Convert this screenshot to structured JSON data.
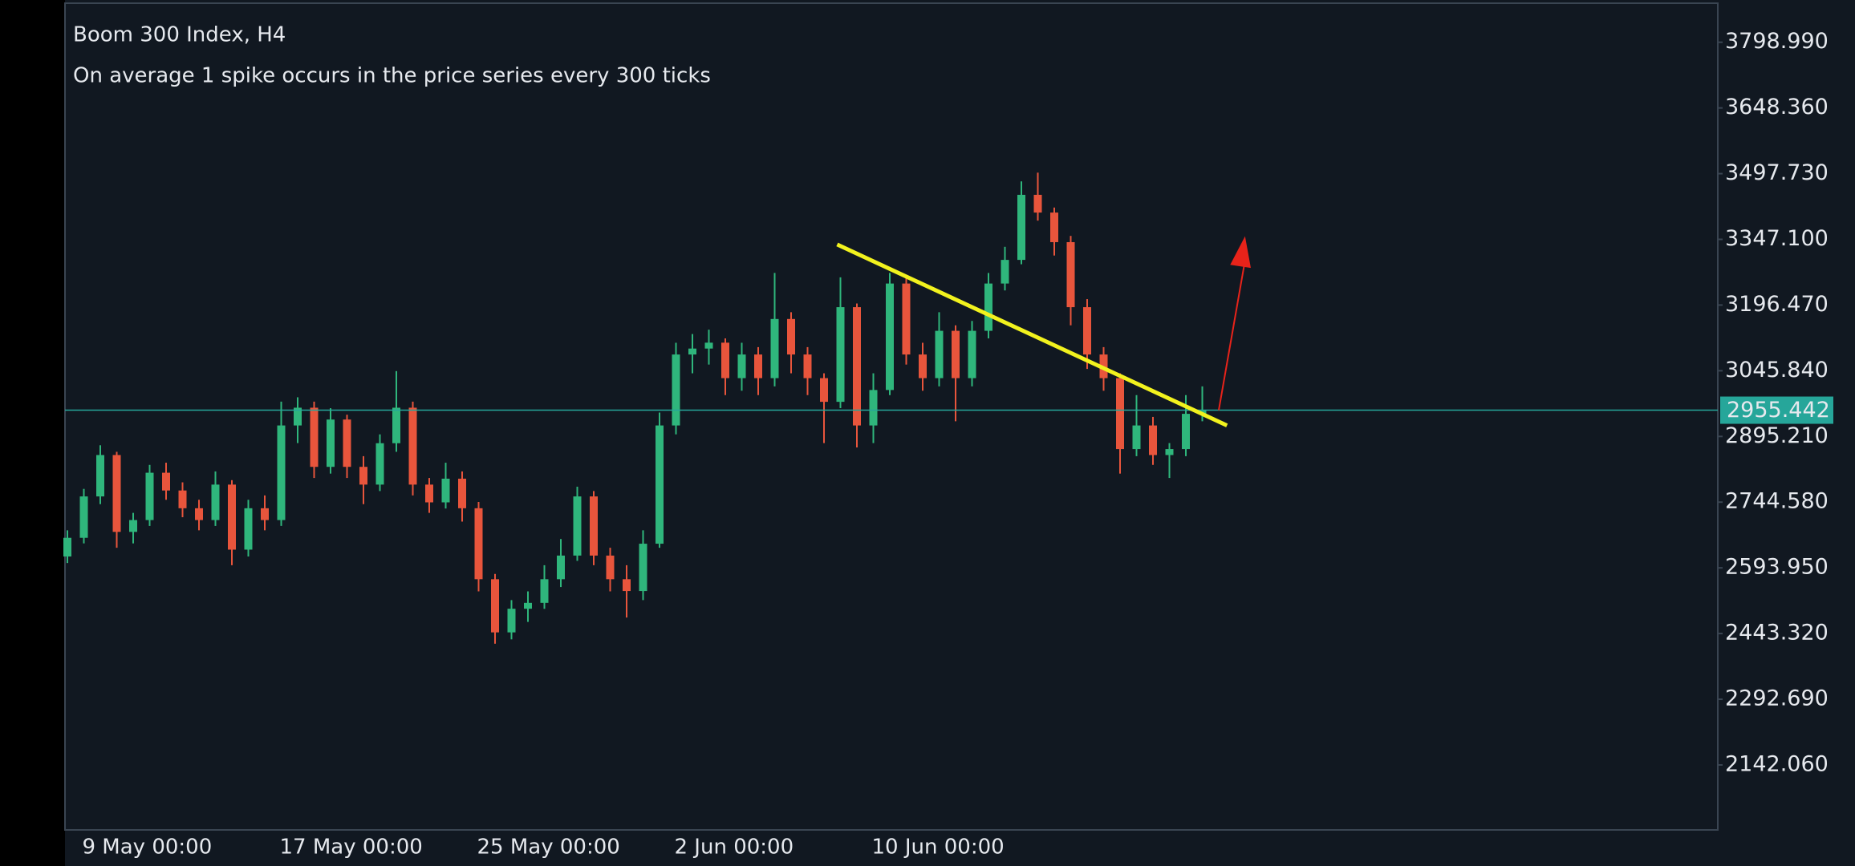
{
  "chart_data": {
    "type": "candlestick",
    "title": "Boom 300 Index, H4",
    "subtitle": "On average 1 spike occurs in the price series every 300 ticks",
    "categories": [
      null,
      "9 May 00:00",
      null,
      null,
      null,
      null,
      null,
      null,
      null,
      null,
      null,
      null,
      null,
      "17 May 00:00",
      null,
      null,
      null,
      null,
      null,
      null,
      null,
      null,
      null,
      null,
      null,
      "25 May 00:00",
      null,
      null,
      null,
      null,
      null,
      null,
      null,
      null,
      null,
      null,
      null,
      "2 Jun 00:00",
      null,
      null,
      null,
      null,
      null,
      null,
      null,
      null,
      null,
      null,
      null,
      "10 Jun 00:00",
      null,
      null,
      null,
      null,
      null,
      null,
      null,
      null,
      null,
      null,
      null,
      null,
      null,
      null,
      null,
      null,
      null,
      null,
      null,
      null
    ],
    "open": [
      2620,
      2662.8,
      2757.7,
      2852.6,
      2676.4,
      2703.5,
      2812.0,
      2771.3,
      2730.6,
      2703.5,
      2784.8,
      2635.7,
      2730.6,
      2703.5,
      2920.4,
      2961.1,
      2825.5,
      2934.0,
      2825.5,
      2784.8,
      2879.7,
      2961.1,
      2784.8,
      2744.1,
      2798.4,
      2730.6,
      2567.9,
      2446.0,
      2500.2,
      2513.7,
      2567.9,
      2622.1,
      2757.7,
      2622.1,
      2567.9,
      2540.8,
      2649.3,
      2920.4,
      3083.1,
      3096.7,
      3110.2,
      3028.9,
      3083.1,
      3028.9,
      3164.5,
      3083.1,
      3028.9,
      2974.6,
      3191.6,
      2920.4,
      3001.7,
      3245.8,
      3083.1,
      3028.9,
      3137.4,
      3028.9,
      3137.4,
      3245.8,
      3300.0,
      3449.2,
      3408.5,
      3340.7,
      3191.6,
      3083.1,
      3028.9,
      2866.2,
      2920.4,
      2852.6,
      2866.2,
      2947.1
    ],
    "high": [
      2680,
      2775,
      2875,
      2860,
      2720,
      2830,
      2835,
      2790,
      2750,
      2815,
      2795,
      2750,
      2760,
      2975,
      2985,
      2975,
      2960,
      2945,
      2850,
      2900,
      3045,
      2975,
      2800,
      2835,
      2815,
      2745,
      2580,
      2520,
      2540,
      2600,
      2660,
      2780,
      2770,
      2640,
      2600,
      2680,
      2950,
      3110,
      3130,
      3140,
      3120,
      3110,
      3100,
      3270,
      3180,
      3100,
      3040,
      3260,
      3200,
      3040,
      3270,
      3260,
      3110,
      3180,
      3150,
      3160,
      3270,
      3330,
      3480,
      3500,
      3420,
      3355,
      3210,
      3100,
      3040,
      2990,
      2940,
      2880,
      2990,
      3010
    ],
    "low": [
      2605,
      2650,
      2740,
      2640,
      2650,
      2690,
      2750,
      2710,
      2680,
      2690,
      2600,
      2620,
      2680,
      2690,
      2880,
      2800,
      2810,
      2800,
      2740,
      2770,
      2860,
      2760,
      2720,
      2730,
      2700,
      2540,
      2420,
      2430,
      2470,
      2500,
      2550,
      2610,
      2600,
      2540,
      2480,
      2520,
      2640,
      2900,
      3040,
      3060,
      2990,
      3000,
      2990,
      3010,
      3040,
      2990,
      2880,
      2960,
      2870,
      2880,
      2990,
      3060,
      3000,
      3010,
      2930,
      3010,
      3120,
      3230,
      3290,
      3390,
      3310,
      3150,
      3050,
      3000,
      2810,
      2850,
      2830,
      2800,
      2850,
      2930
    ],
    "close": [
      2662.8,
      2757.7,
      2852.6,
      2676.4,
      2703.5,
      2812.0,
      2771.3,
      2730.6,
      2703.5,
      2784.8,
      2635.7,
      2730.6,
      2703.5,
      2920.4,
      2961.1,
      2825.5,
      2934.0,
      2825.5,
      2784.8,
      2879.7,
      2961.1,
      2784.8,
      2744.1,
      2798.4,
      2730.6,
      2567.9,
      2446.0,
      2500.2,
      2513.7,
      2567.9,
      2622.1,
      2757.7,
      2622.1,
      2567.9,
      2540.8,
      2649.3,
      2920.4,
      3083.1,
      3096.7,
      3110.2,
      3028.9,
      3083.1,
      3028.9,
      3164.5,
      3083.1,
      3028.9,
      2974.6,
      3191.6,
      2920.4,
      3001.7,
      3245.8,
      3083.1,
      3028.9,
      3137.4,
      3028.9,
      3137.4,
      3245.8,
      3300.0,
      3449.2,
      3408.5,
      3340.7,
      3191.6,
      3083.1,
      3028.9,
      2866.2,
      2920.4,
      2852.6,
      2866.2,
      2947.1,
      2955.442
    ],
    "up_color": "#2fb67c",
    "down_color": "#e8553c",
    "ylim": [
      1993.1,
      3888.5
    ],
    "yticks": [
      {
        "value": 2142.06,
        "label": "2142.060"
      },
      {
        "value": 2292.69,
        "label": "2292.690"
      },
      {
        "value": 2443.32,
        "label": "2443.320"
      },
      {
        "value": 2593.95,
        "label": "2593.950"
      },
      {
        "value": 2744.58,
        "label": "2744.580"
      },
      {
        "value": 2895.21,
        "label": "2895.210"
      },
      {
        "value": 3045.84,
        "label": "3045.840"
      },
      {
        "value": 3196.47,
        "label": "3196.470"
      },
      {
        "value": 3347.1,
        "label": "3347.100"
      },
      {
        "value": 3497.73,
        "label": "3497.730"
      },
      {
        "value": 3648.36,
        "label": "3648.360"
      },
      {
        "value": 3798.99,
        "label": "3798.990"
      }
    ],
    "last_price": 2955.442,
    "last_price_color": "#26a69a",
    "trendline": {
      "x": [
        46.8,
        70.5
      ],
      "y": [
        3335.3,
        2920.4
      ],
      "color": "#f2f21e"
    },
    "arrow": {
      "x": [
        70.0,
        71.6
      ],
      "y": [
        2955.4,
        3354.3
      ],
      "color": "#e8231a"
    }
  }
}
